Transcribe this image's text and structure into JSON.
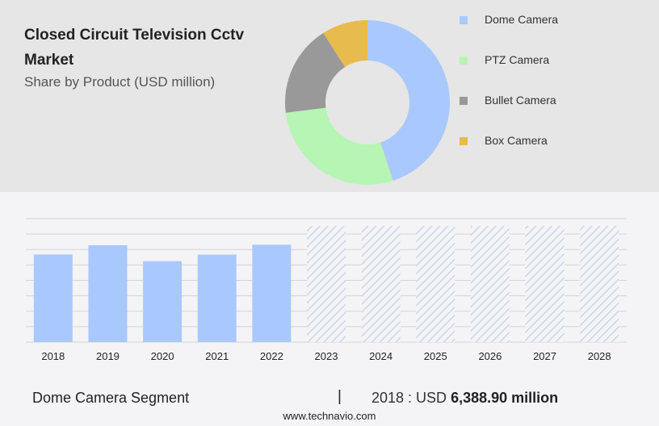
{
  "header": {
    "title": "Closed Circuit Television Cctv Market",
    "subtitle": "Share by Product (USD million)"
  },
  "chart_data": [
    {
      "type": "pie",
      "style": "donut",
      "labels": [
        "Dome Camera",
        "PTZ Camera",
        "Bullet Camera",
        "Box Camera"
      ],
      "values": [
        45,
        28,
        18,
        9
      ],
      "colors": [
        "#a9c8fd",
        "#b6f5b3",
        "#999999",
        "#e8bb4e"
      ],
      "legend_position": "right"
    },
    {
      "type": "bar",
      "categories": [
        "2018",
        "2019",
        "2020",
        "2021",
        "2022",
        "2023",
        "2024",
        "2025",
        "2026",
        "2027",
        "2028"
      ],
      "values": [
        6388.9,
        7060,
        5900,
        6380,
        7100,
        null,
        null,
        null,
        null,
        null,
        null
      ],
      "forecast_categories": [
        "2023",
        "2024",
        "2025",
        "2026",
        "2027",
        "2028"
      ],
      "forecast_style": "hatched",
      "ylim": [
        0,
        9000
      ],
      "grid": true,
      "bar_color": "#a9c8fd",
      "hatch_color": "#bccde6"
    }
  ],
  "footer": {
    "segment": "Dome Camera Segment",
    "separator": "|",
    "value_prefix": "2018 : USD",
    "value": "6,388.90 million",
    "source": "www.technavio.com"
  }
}
